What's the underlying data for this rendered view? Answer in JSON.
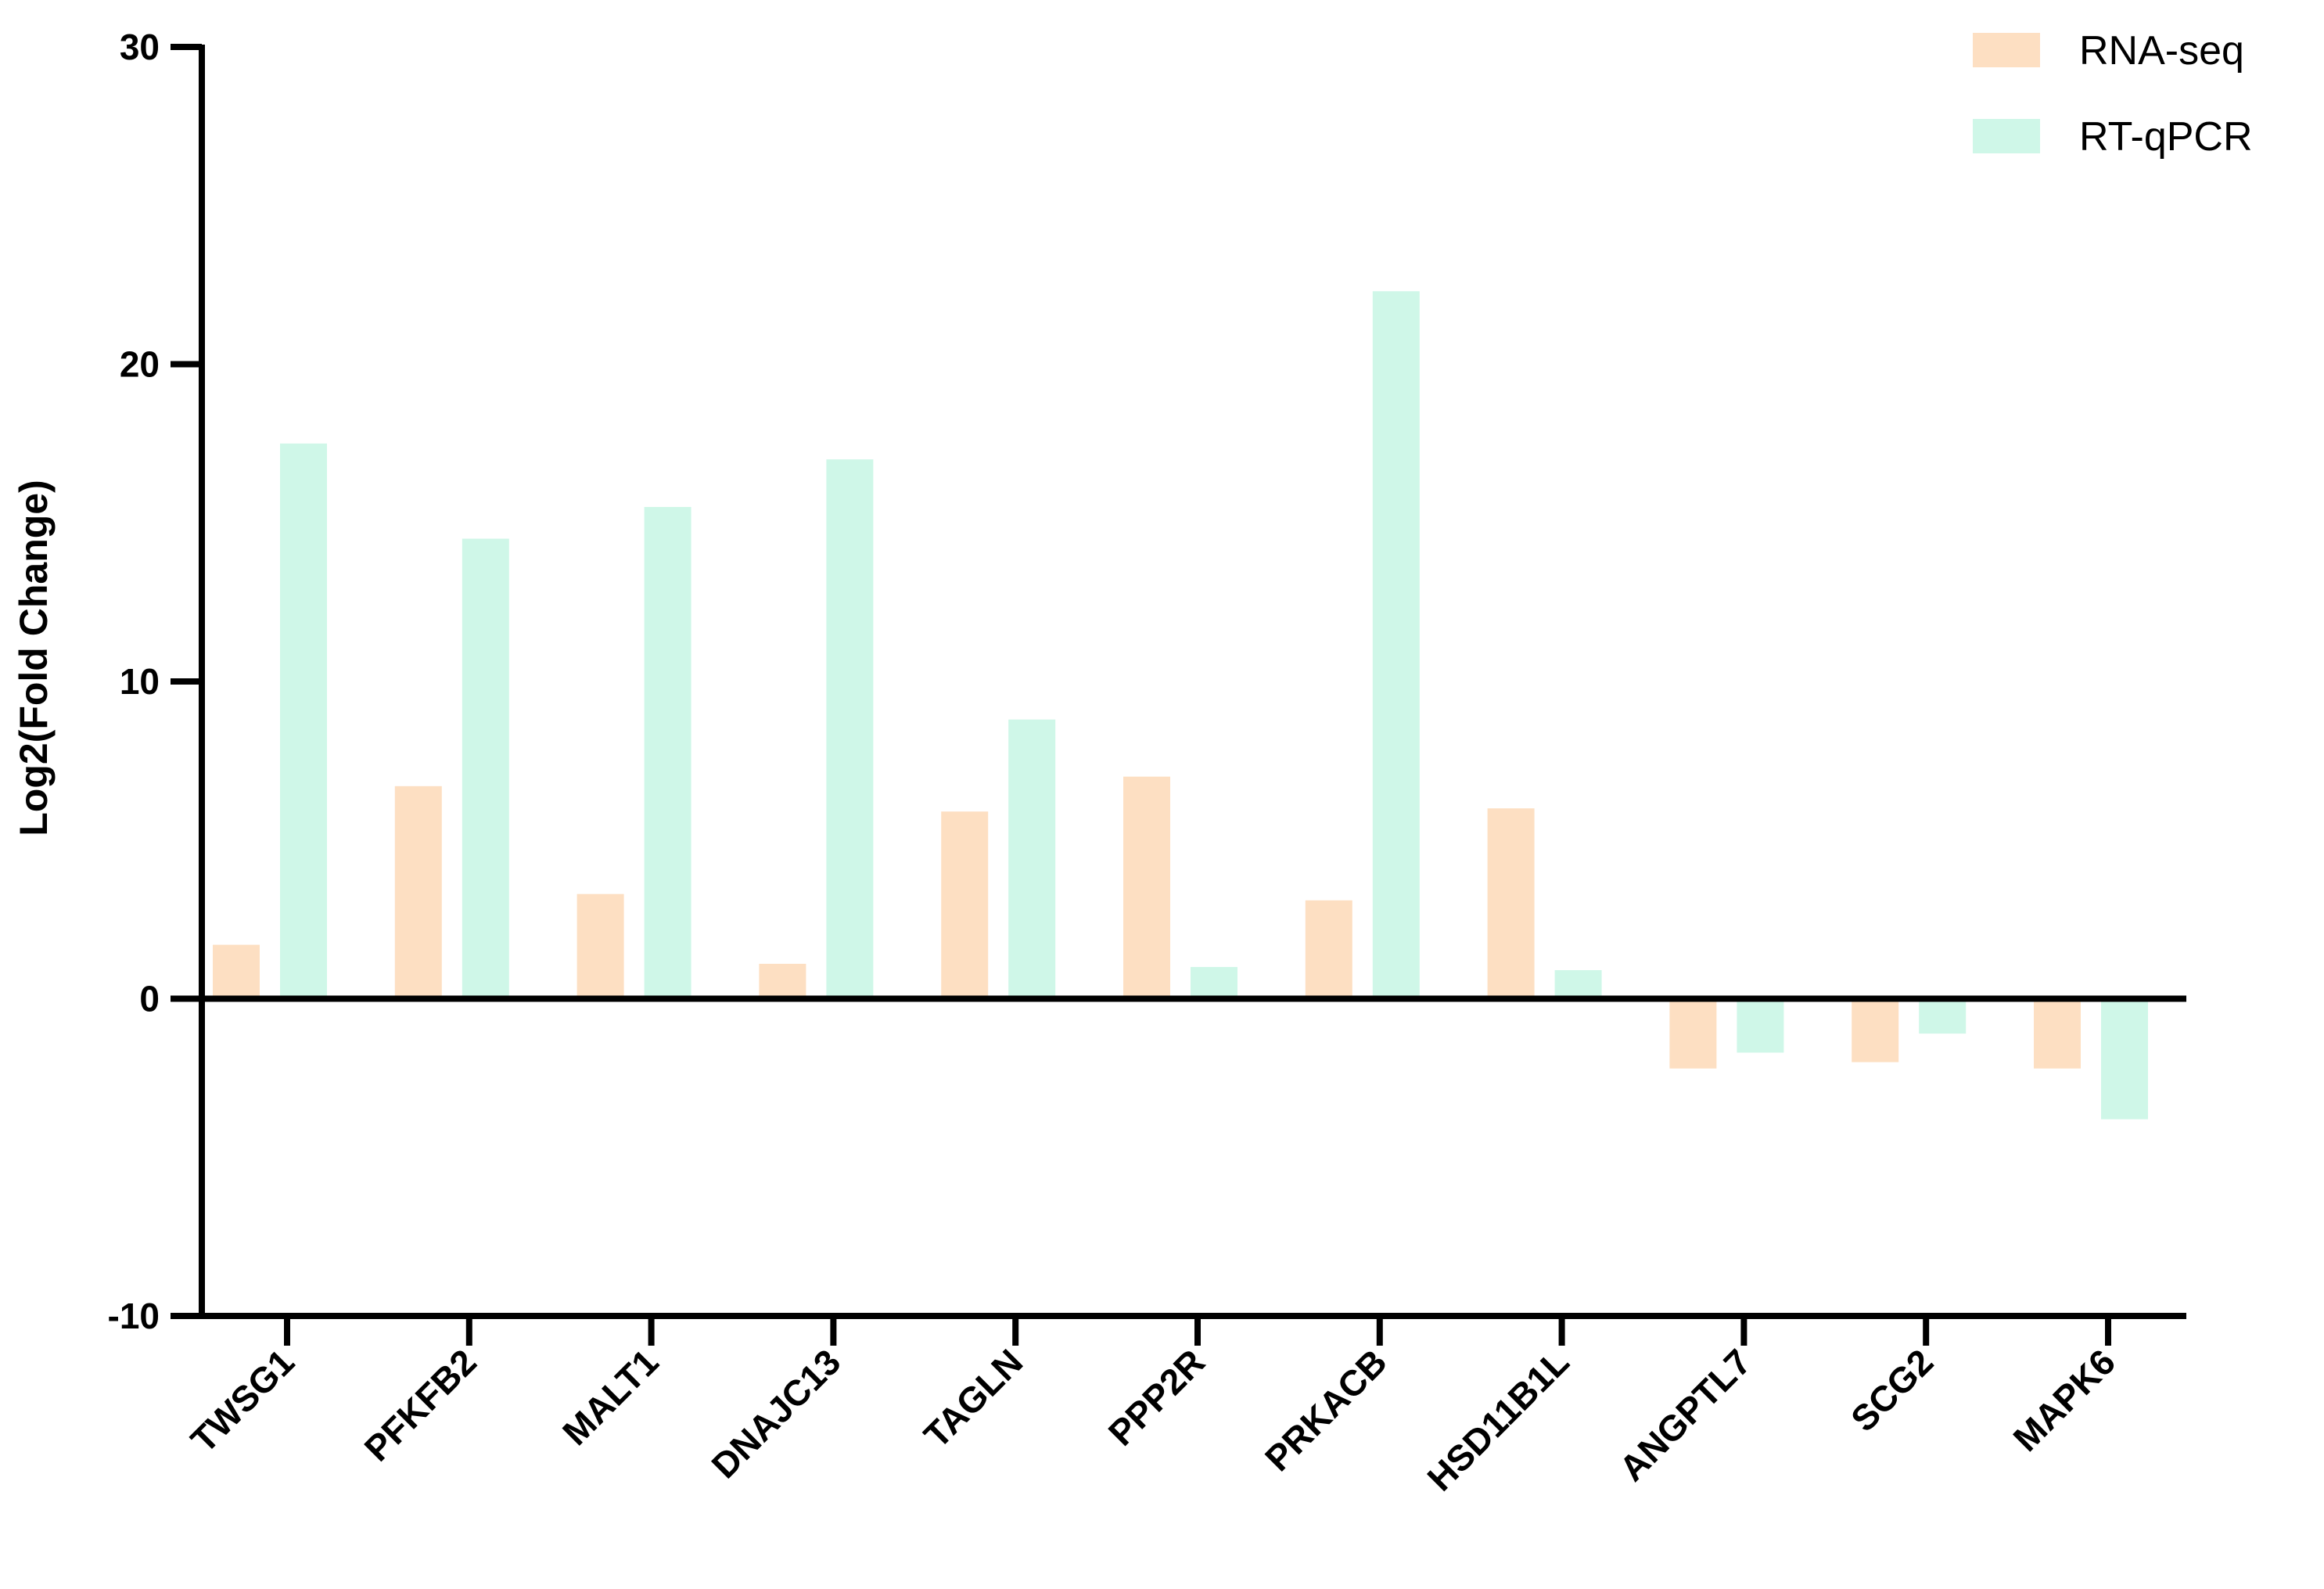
{
  "chart_data": {
    "type": "bar",
    "title": "",
    "xlabel": "",
    "ylabel": "Log2(Fold Change)",
    "ylim": [
      -10,
      30
    ],
    "yticks": [
      -10,
      0,
      10,
      20,
      30
    ],
    "grid": false,
    "legend_position": "top-right",
    "categories": [
      "TWSG1",
      "PFKFB2",
      "MALT1",
      "DNAJC13",
      "TAGLN",
      "PPP2R",
      "PRKACB",
      "HSD11B1L",
      "ANGPTL7",
      "SCG2",
      "MAPK6"
    ],
    "series": [
      {
        "name": "RNA-seq",
        "color": "#FDDFC2",
        "values": [
          1.7,
          6.7,
          3.3,
          1.1,
          5.9,
          7.0,
          3.1,
          6.0,
          -2.2,
          -2.0,
          -2.2
        ]
      },
      {
        "name": "RT-qPCR",
        "color": "#CFF7E8",
        "values": [
          17.5,
          14.5,
          15.5,
          17.0,
          8.8,
          1.0,
          22.3,
          0.9,
          -1.7,
          -1.1,
          -3.8
        ]
      }
    ]
  }
}
